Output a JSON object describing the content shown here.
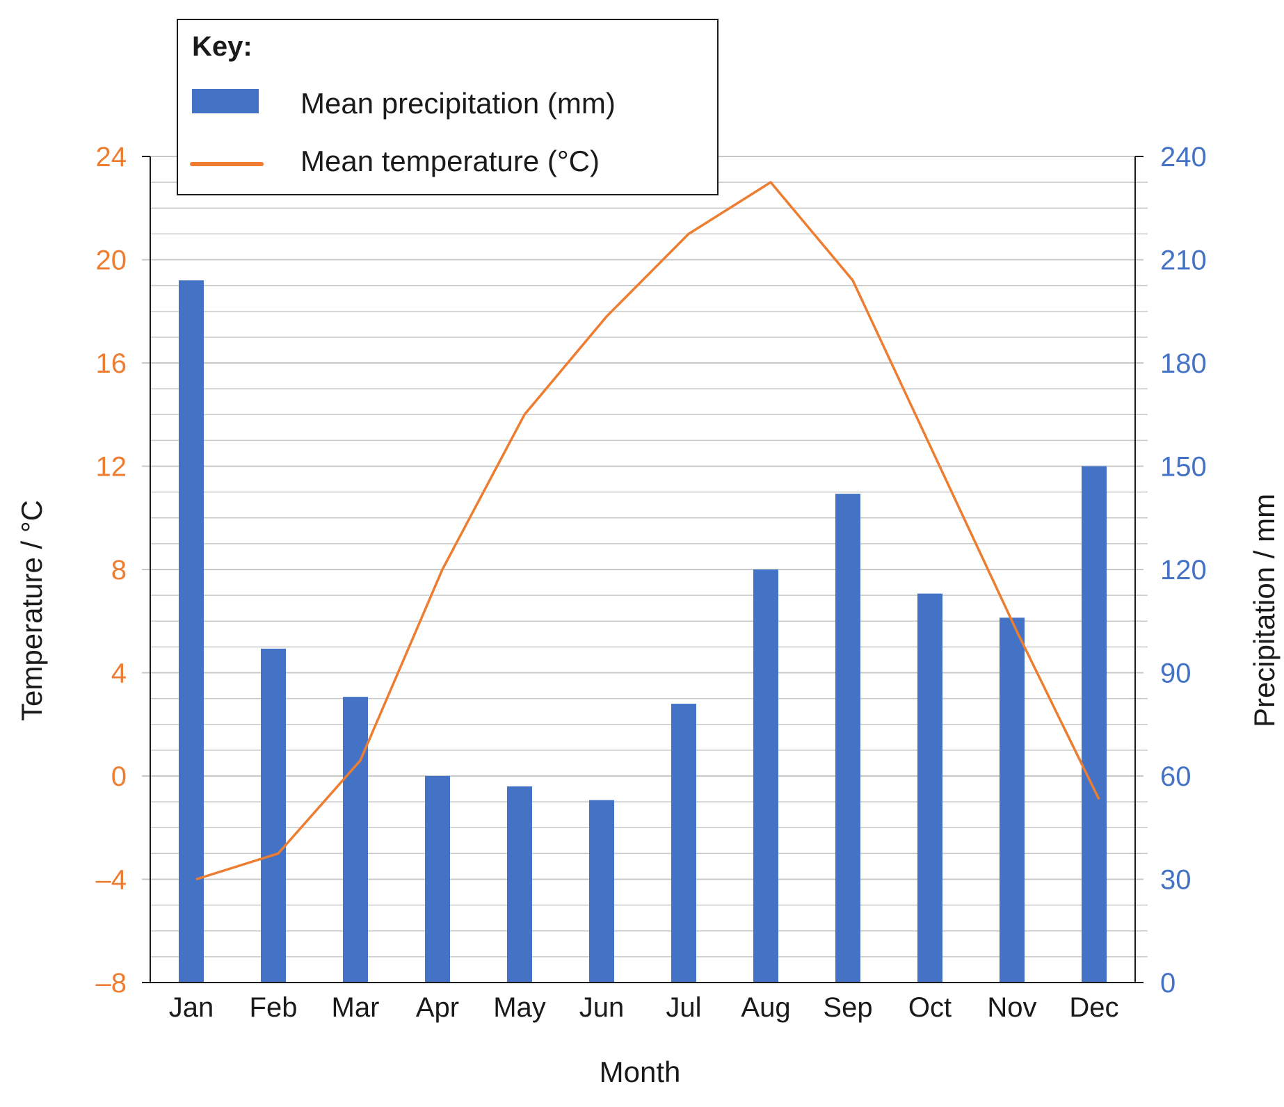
{
  "chart_data": {
    "type": "bar",
    "categories": [
      "Jan",
      "Feb",
      "Mar",
      "Apr",
      "May",
      "Jun",
      "Jul",
      "Aug",
      "Sep",
      "Oct",
      "Nov",
      "Dec"
    ],
    "series": [
      {
        "name": "Mean precipitation (mm)",
        "type": "bar",
        "axis": "right",
        "color": "#4472C4",
        "values": [
          204,
          97,
          83,
          60,
          57,
          53,
          81,
          120,
          142,
          113,
          106,
          150
        ]
      },
      {
        "name": "Mean temperature (°C)",
        "type": "line",
        "axis": "left",
        "color": "#ED7D31",
        "values": [
          -4,
          -3,
          0.6,
          8,
          14,
          17.8,
          21,
          23,
          19.2,
          12.4,
          5.6,
          -0.9
        ]
      }
    ],
    "legend": {
      "title": "Key:",
      "placement": "top-left",
      "items": [
        "Mean precipitation (mm)",
        "Mean temperature (°C)"
      ]
    },
    "xlabel": "Month",
    "ylabel_left": "Temperature / °C",
    "ylabel_right": "Precipitation / mm",
    "ylim_left": [
      -8,
      24
    ],
    "ylim_right": [
      0,
      240
    ],
    "yticks_left": [
      "24",
      "20",
      "16",
      "12",
      "8",
      "4",
      "0",
      "–4",
      "–8"
    ],
    "yticks_right": [
      "240",
      "210",
      "180",
      "150",
      "120",
      "90",
      "60",
      "30",
      "0"
    ],
    "grid": true,
    "colors": {
      "left_axis": "#ED7D31",
      "right_axis": "#4472C4",
      "grid": "#c8c8c8"
    }
  }
}
